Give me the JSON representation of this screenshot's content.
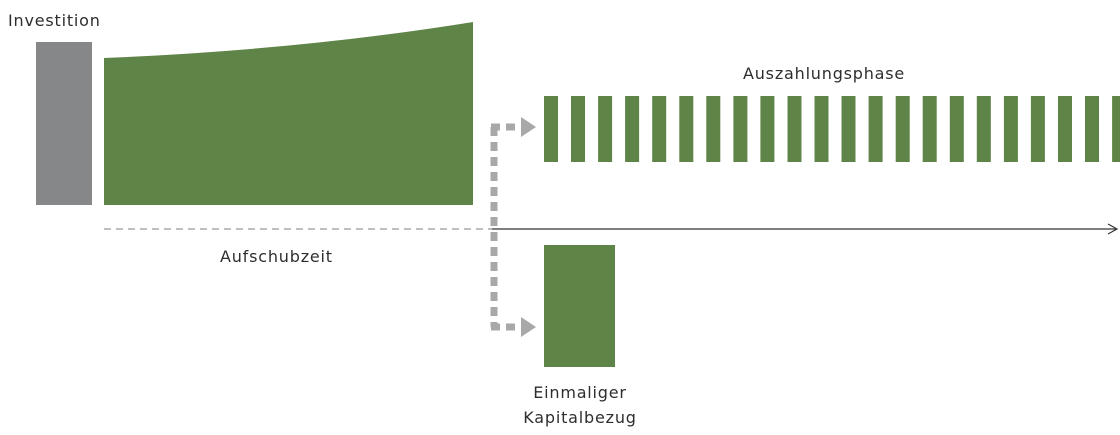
{
  "labels": {
    "investment": "Investition",
    "payout_phase": "Auszahlungsphase",
    "deferral_period": "Aufschubzeit",
    "lump_sum_line1": "Einmaliger",
    "lump_sum_line2": "Kapitalbezug"
  },
  "payout_bar_count": 22,
  "colors": {
    "investment": "#868789",
    "green": "#5f8447",
    "arrow": "#a8a8a8",
    "axis": "#333333",
    "dashed_axis": "#999999",
    "text": "#2e2e2e"
  }
}
